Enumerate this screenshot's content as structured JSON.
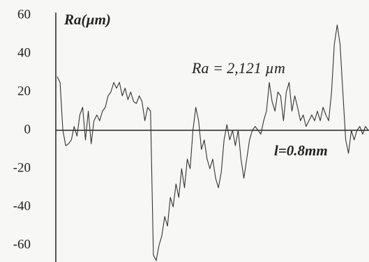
{
  "chart_data": {
    "type": "line",
    "y_label": "Ra(µm)",
    "annotation": "Ra = 2,121 µm",
    "x_label": "l=0.8mm",
    "color": "#333333",
    "ylim": [
      -68,
      62
    ],
    "yticks": [
      -60,
      -40,
      -20,
      0,
      20,
      40,
      60
    ],
    "grid": false,
    "values": [
      28,
      25,
      0,
      -8,
      -7,
      -5,
      2,
      -3,
      8,
      12,
      -5,
      10,
      -7,
      5,
      8,
      5,
      10,
      12,
      18,
      20,
      25,
      22,
      25,
      18,
      22,
      16,
      20,
      15,
      14,
      18,
      15,
      5,
      12,
      10,
      -65,
      -68,
      -60,
      -55,
      -45,
      -50,
      -35,
      -40,
      -28,
      -35,
      -20,
      -30,
      -15,
      -20,
      0,
      12,
      5,
      -10,
      -5,
      -15,
      -20,
      -15,
      -25,
      -30,
      -22,
      -5,
      3,
      -5,
      0,
      -8,
      0,
      -15,
      -25,
      -15,
      -5,
      0,
      2,
      0,
      -2,
      5,
      10,
      25,
      15,
      10,
      20,
      18,
      5,
      20,
      25,
      10,
      18,
      12,
      5,
      8,
      2,
      5,
      8,
      5,
      10,
      5,
      12,
      8,
      5,
      20,
      45,
      55,
      45,
      20,
      -5,
      -12,
      0,
      -5,
      0,
      2,
      -2,
      2,
      0
    ]
  }
}
